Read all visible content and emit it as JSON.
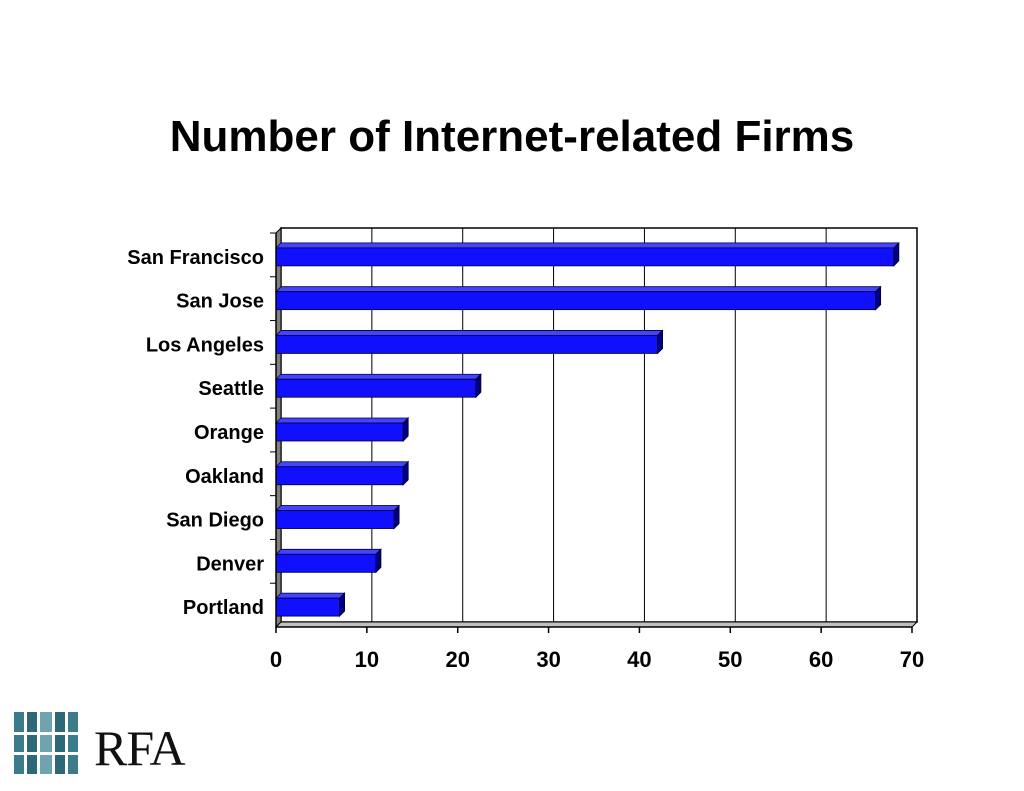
{
  "chart_data": {
    "type": "bar",
    "orientation": "horizontal",
    "title": "Number of Internet-related Firms",
    "categories": [
      "San Francisco",
      "San Jose",
      "Los Angeles",
      "Seattle",
      "Orange",
      "Oakland",
      "San Diego",
      "Denver",
      "Portland"
    ],
    "values": [
      68,
      66,
      42,
      22,
      14,
      14,
      13,
      11,
      7
    ],
    "xlim": [
      0,
      70
    ],
    "xticks": [
      0,
      10,
      20,
      30,
      40,
      50,
      60,
      70
    ],
    "grid": "vertical",
    "bar_color": "#1010ff"
  },
  "logo": {
    "text": "RFA",
    "color": "#2e6b7a"
  }
}
